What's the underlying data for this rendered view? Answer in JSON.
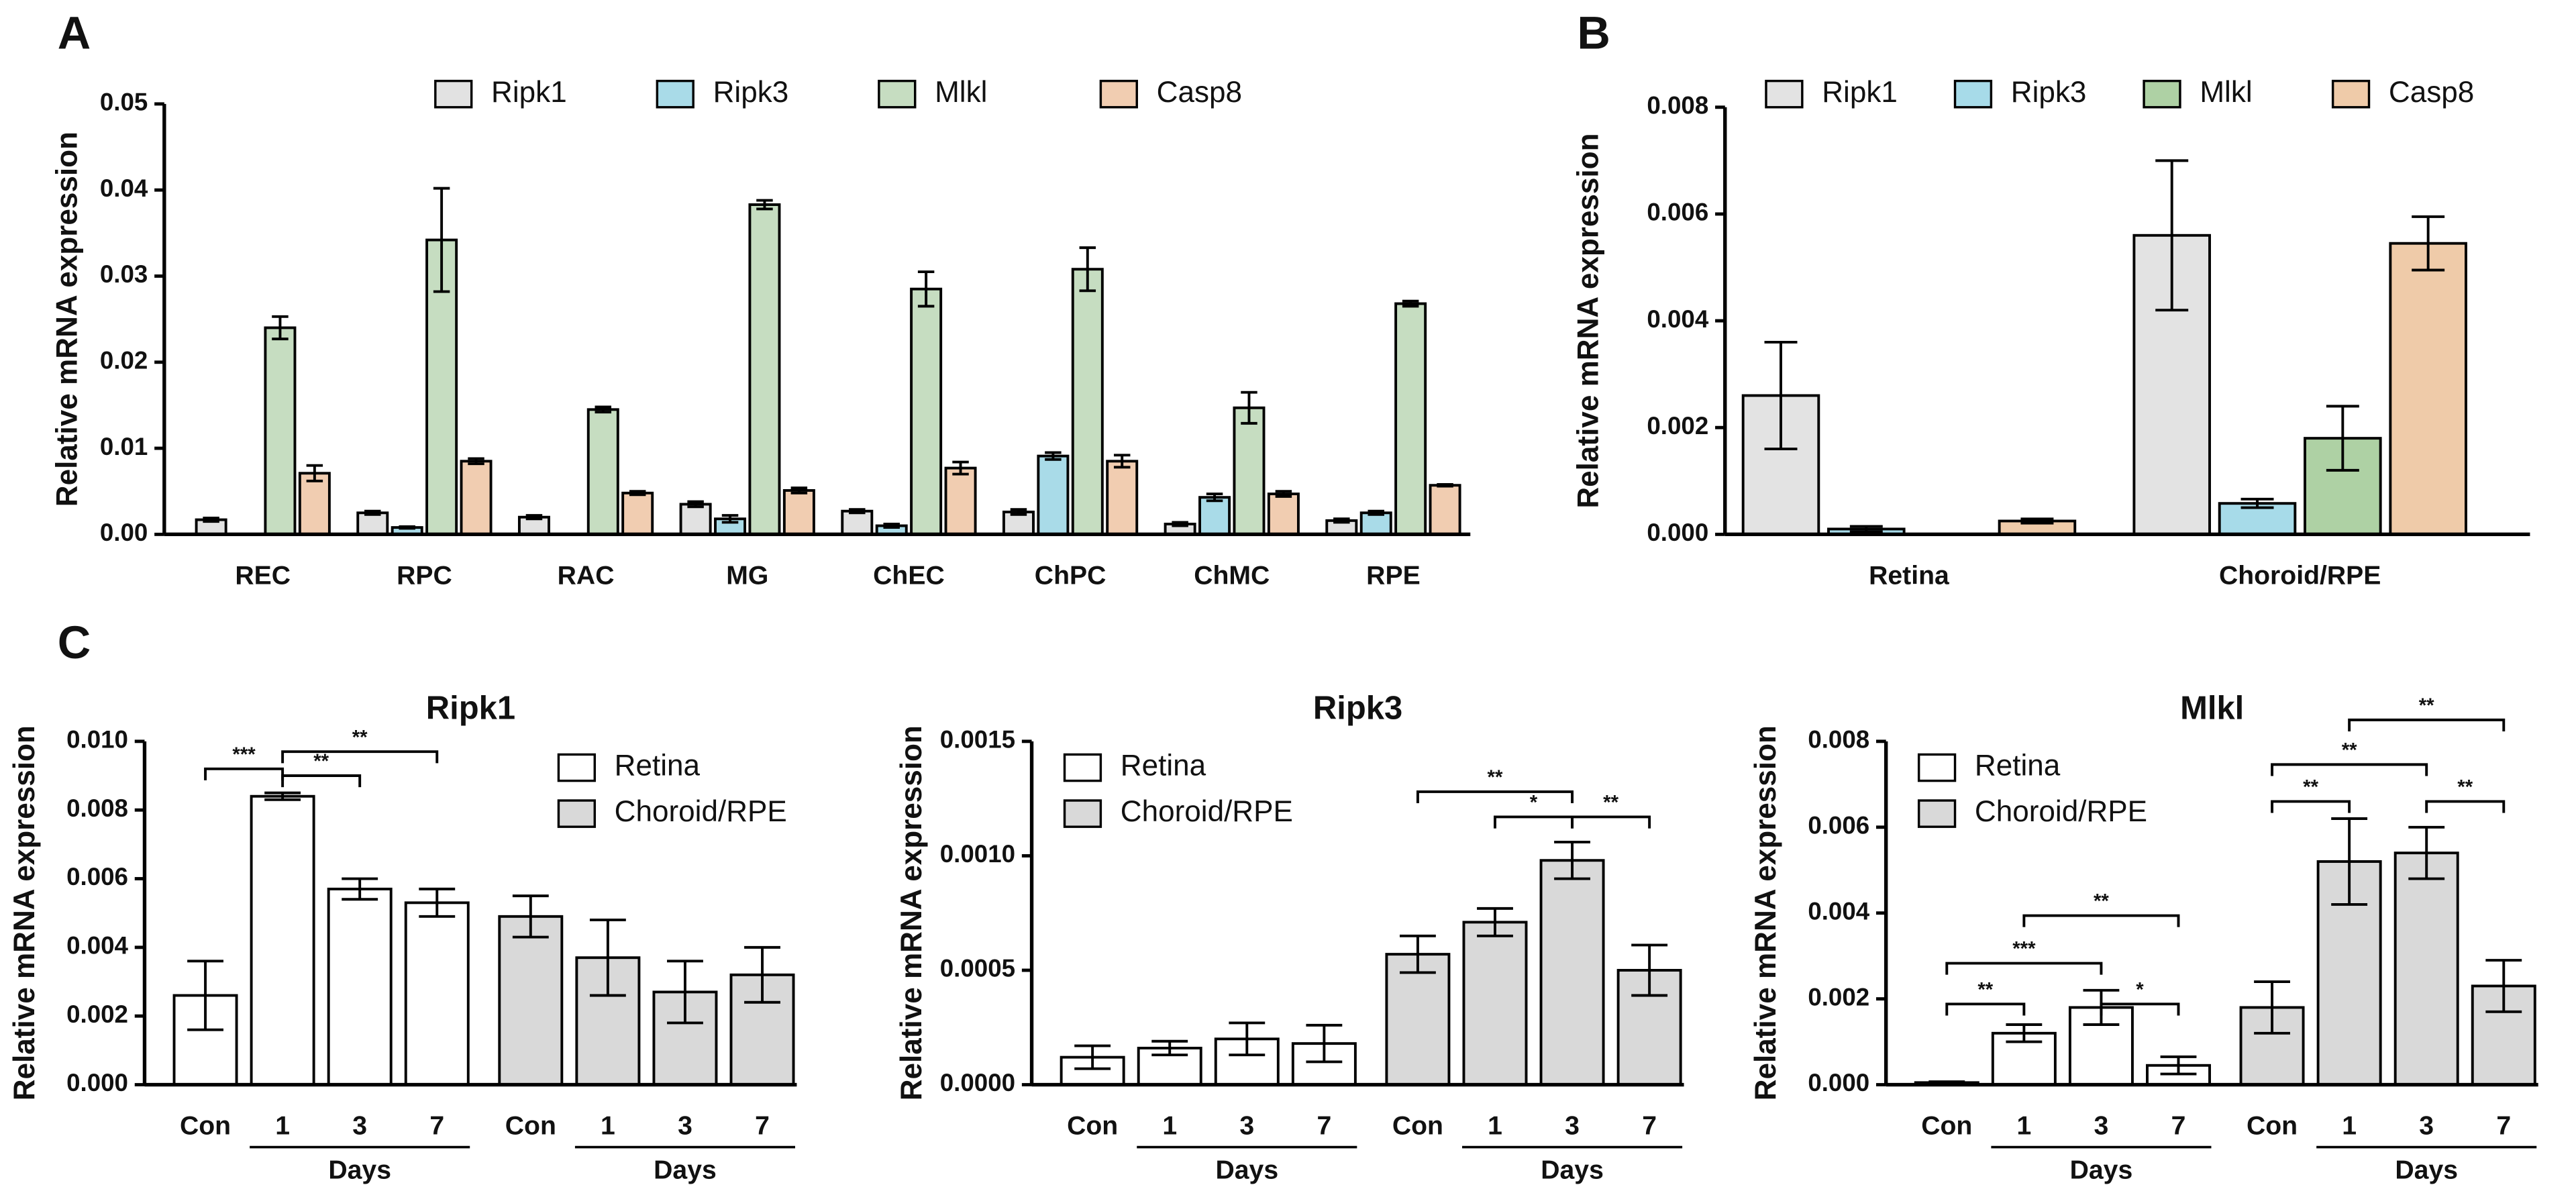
{
  "chart_data": [
    {
      "type": "bar",
      "panel": "A",
      "ylabel": "Relative mRNA expression",
      "legend": "top",
      "categories": [
        "REC",
        "RPC",
        "RAC",
        "MG",
        "ChEC",
        "ChPC",
        "ChMC",
        "RPE"
      ],
      "series": [
        {
          "name": "Ripk1",
          "color": "#e2e2e2",
          "values": [
            0.0017,
            0.0025,
            0.002,
            0.0035,
            0.0027,
            0.0026,
            0.0012,
            0.0016
          ],
          "errors": [
            0.0002,
            0.0002,
            0.0002,
            0.0003,
            0.0002,
            0.0003,
            0.0002,
            0.0002
          ]
        },
        {
          "name": "Ripk3",
          "color": "#a9dbe8",
          "values": [
            0,
            0.0008,
            0,
            0.0018,
            0.001,
            0.0091,
            0.0043,
            0.0025
          ],
          "errors": [
            0,
            0.0001,
            0,
            0.0004,
            0.0002,
            0.0004,
            0.0004,
            0.0002
          ]
        },
        {
          "name": "Mlkl",
          "color": "#c6ddc1",
          "values": [
            0.024,
            0.0342,
            0.0145,
            0.0383,
            0.0285,
            0.0308,
            0.0147,
            0.0268
          ],
          "errors": [
            0.0013,
            0.006,
            0.0003,
            0.0005,
            0.002,
            0.0025,
            0.0018,
            0.0003
          ]
        },
        {
          "name": "Casp8",
          "color": "#f1cdb1",
          "values": [
            0.0071,
            0.0085,
            0.0048,
            0.0051,
            0.0077,
            0.0085,
            0.0047,
            0.0057
          ],
          "errors": [
            0.0009,
            0.0003,
            0.0002,
            0.0003,
            0.0007,
            0.0007,
            0.0003,
            0.0001
          ]
        }
      ],
      "ylim": [
        0,
        0.05
      ],
      "yticks": [
        {
          "value": 0,
          "label": "0.00"
        },
        {
          "value": 0.01,
          "label": "0.01"
        },
        {
          "value": 0.02,
          "label": "0.02"
        },
        {
          "value": 0.03,
          "label": "0.03"
        },
        {
          "value": 0.04,
          "label": "0.04"
        },
        {
          "value": 0.05,
          "label": "0.05"
        }
      ]
    },
    {
      "type": "bar",
      "panel": "B",
      "ylabel": "Relative mRNA expression",
      "legend": "top",
      "categories": [
        "Retina",
        "Choroid/RPE"
      ],
      "series": [
        {
          "name": "Ripk1",
          "color": "#e3e3e3",
          "values": [
            0.0026,
            0.0056
          ],
          "errors": [
            0.001,
            0.0014
          ]
        },
        {
          "name": "Ripk3",
          "color": "#a7dbe9",
          "values": [
            0.0001,
            0.00058
          ],
          "errors": [
            5e-05,
            8e-05
          ]
        },
        {
          "name": "Mlkl",
          "color": "#aed1a4",
          "values": [
            0,
            0.0018
          ],
          "errors": [
            0,
            0.0006
          ]
        },
        {
          "name": "Casp8",
          "color": "#efcba9",
          "values": [
            0.00025,
            0.00545
          ],
          "errors": [
            4e-05,
            0.0005
          ]
        }
      ],
      "ylim": [
        0,
        0.008
      ],
      "yticks": [
        {
          "value": 0,
          "label": "0.000"
        },
        {
          "value": 0.002,
          "label": "0.002"
        },
        {
          "value": 0.004,
          "label": "0.004"
        },
        {
          "value": 0.006,
          "label": "0.006"
        },
        {
          "value": 0.008,
          "label": "0.008"
        }
      ]
    },
    {
      "type": "bar",
      "panel": "C",
      "title": "Ripk1",
      "ylabel": "Relative mRNA expression",
      "legend": "upper right",
      "categories": [
        "Con",
        "1",
        "3",
        "7",
        "Con",
        "1",
        "3",
        "7"
      ],
      "groups": [
        {
          "label": "Days",
          "from": 1,
          "to": 3
        },
        {
          "label": "Days",
          "from": 5,
          "to": 7
        }
      ],
      "series": [
        {
          "name": "Retina",
          "color": "#ffffff",
          "values": [
            0.0026,
            0.0084,
            0.0057,
            0.0053,
            null,
            null,
            null,
            null
          ],
          "errors": [
            0.001,
            0.0001,
            0.0003,
            0.0004,
            null,
            null,
            null,
            null
          ]
        },
        {
          "name": "Choroid/RPE",
          "color": "#d9d9d9",
          "values": [
            null,
            null,
            null,
            null,
            0.0049,
            0.0037,
            0.0027,
            0.0032
          ],
          "errors": [
            null,
            null,
            null,
            null,
            0.0006,
            0.0011,
            0.0009,
            0.0008
          ]
        }
      ],
      "brackets": [
        {
          "from": 0,
          "to": 1,
          "y": 0.0092,
          "label": "***"
        },
        {
          "from": 1,
          "to": 2,
          "y": 0.009,
          "label": "**"
        },
        {
          "from": 1,
          "to": 3,
          "y": 0.0097,
          "label": "**"
        }
      ],
      "ylim": [
        0,
        0.01
      ],
      "yticks": [
        {
          "value": 0,
          "label": "0.000"
        },
        {
          "value": 0.002,
          "label": "0.002"
        },
        {
          "value": 0.004,
          "label": "0.004"
        },
        {
          "value": 0.006,
          "label": "0.006"
        },
        {
          "value": 0.008,
          "label": "0.008"
        },
        {
          "value": 0.01,
          "label": "0.010"
        }
      ]
    },
    {
      "type": "bar",
      "title": "Ripk3",
      "ylabel": "Relative mRNA expression",
      "legend": "upper left",
      "categories": [
        "Con",
        "1",
        "3",
        "7",
        "Con",
        "1",
        "3",
        "7"
      ],
      "groups": [
        {
          "label": "Days",
          "from": 1,
          "to": 3
        },
        {
          "label": "Days",
          "from": 5,
          "to": 7
        }
      ],
      "series": [
        {
          "name": "Retina",
          "color": "#ffffff",
          "values": [
            0.00012,
            0.00016,
            0.0002,
            0.00018,
            null,
            null,
            null,
            null
          ],
          "errors": [
            5e-05,
            3e-05,
            7e-05,
            8e-05,
            null,
            null,
            null,
            null
          ]
        },
        {
          "name": "Choroid/RPE",
          "color": "#d9d9d9",
          "values": [
            null,
            null,
            null,
            null,
            0.00057,
            0.00071,
            0.00098,
            0.0005
          ],
          "errors": [
            null,
            null,
            null,
            null,
            8e-05,
            6e-05,
            8e-05,
            0.00011
          ]
        }
      ],
      "brackets": [
        {
          "from": 4,
          "to": 6,
          "y": 0.00128,
          "label": "**"
        },
        {
          "from": 5,
          "to": 6,
          "y": 0.00117,
          "label": "*"
        },
        {
          "from": 6,
          "to": 7,
          "y": 0.00117,
          "label": "**"
        }
      ],
      "ylim": [
        0,
        0.0015
      ],
      "yticks": [
        {
          "value": 0,
          "label": "0.0000"
        },
        {
          "value": 0.0005,
          "label": "0.0005"
        },
        {
          "value": 0.001,
          "label": "0.0010"
        },
        {
          "value": 0.0015,
          "label": "0.0015"
        }
      ]
    },
    {
      "type": "bar",
      "title": "Mlkl",
      "ylabel": "Relative mRNA expression",
      "legend": "upper left",
      "categories": [
        "Con",
        "1",
        "3",
        "7",
        "Con",
        "1",
        "3",
        "7"
      ],
      "groups": [
        {
          "label": "Days",
          "from": 1,
          "to": 3
        },
        {
          "label": "Days",
          "from": 5,
          "to": 7
        }
      ],
      "series": [
        {
          "name": "Retina",
          "color": "#ffffff",
          "values": [
            5e-05,
            0.0012,
            0.0018,
            0.00045,
            null,
            null,
            null,
            null
          ],
          "errors": [
            2e-05,
            0.0002,
            0.0004,
            0.0002,
            null,
            null,
            null,
            null
          ]
        },
        {
          "name": "Choroid/RPE",
          "color": "#d9d9d9",
          "values": [
            null,
            null,
            null,
            null,
            0.0018,
            0.0052,
            0.0054,
            0.0023
          ],
          "errors": [
            null,
            null,
            null,
            null,
            0.0006,
            0.001,
            0.0006,
            0.0006
          ]
        }
      ],
      "brackets": [
        {
          "from": 0,
          "to": 1,
          "y": 0.00188,
          "label": "**"
        },
        {
          "from": 0,
          "to": 2,
          "y": 0.00283,
          "label": "***"
        },
        {
          "from": 1,
          "to": 3,
          "y": 0.00394,
          "label": "**"
        },
        {
          "from": 2,
          "to": 3,
          "y": 0.00188,
          "label": "*"
        },
        {
          "from": 4,
          "to": 5,
          "y": 0.0066,
          "label": "**"
        },
        {
          "from": 4,
          "to": 6,
          "y": 0.00746,
          "label": "**"
        },
        {
          "from": 5,
          "to": 7,
          "y": 0.0085,
          "label": "**"
        },
        {
          "from": 6,
          "to": 7,
          "y": 0.0066,
          "label": "**"
        }
      ],
      "ylim": [
        0,
        0.008
      ],
      "yticks": [
        {
          "value": 0,
          "label": "0.000"
        },
        {
          "value": 0.002,
          "label": "0.002"
        },
        {
          "value": 0.004,
          "label": "0.004"
        },
        {
          "value": 0.006,
          "label": "0.006"
        },
        {
          "value": 0.008,
          "label": "0.008"
        }
      ]
    }
  ]
}
